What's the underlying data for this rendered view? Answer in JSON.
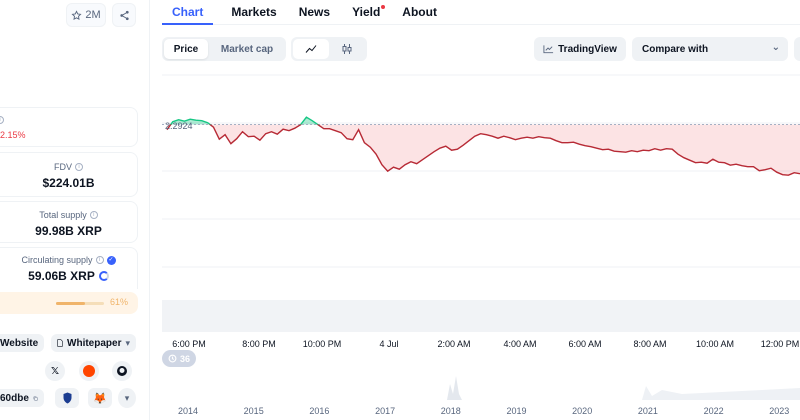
{
  "sidebar": {
    "watchlist_count": "2M",
    "price_change_pct": "2.15%",
    "fdv": {
      "label": "FDV",
      "value": "$224.01B"
    },
    "total_supply": {
      "label": "Total supply",
      "value": "99.98B XRP"
    },
    "circulating_supply": {
      "label": "Circulating supply",
      "value": "59.06B XRP"
    },
    "supply_pct": "61%",
    "supply_fraction": 0.61,
    "links": {
      "website": "Website",
      "whitepaper": "Whitepaper"
    },
    "contract_short": "60dbe"
  },
  "tabs": [
    {
      "label": "Chart"
    },
    {
      "label": "Markets"
    },
    {
      "label": "News"
    },
    {
      "label": "Yield"
    },
    {
      "label": "About"
    }
  ],
  "toolbar": {
    "price_label": "Price",
    "market_cap_label": "Market cap",
    "tradingview_label": "TradingView",
    "compare_label": "Compare with"
  },
  "chart_data": {
    "type": "line",
    "reference_price_label": "2.2924",
    "reference_price": 2.2924,
    "x_ticks": [
      "6:00 PM",
      "8:00 PM",
      "10:00 PM",
      "4 Jul",
      "2:00 AM",
      "4:00 AM",
      "6:00 AM",
      "8:00 AM",
      "10:00 AM",
      "12:00 PM"
    ],
    "year_ticks": [
      "2014",
      "2015",
      "2016",
      "2017",
      "2018",
      "2019",
      "2020",
      "2021",
      "2022",
      "2023"
    ],
    "events_count": "36",
    "colors": {
      "up": "#16c784",
      "down": "#ea3943"
    },
    "series": [
      {
        "values": [
          2.282,
          2.298,
          2.302,
          2.299,
          2.303,
          2.301,
          2.3,
          2.296,
          2.287,
          2.263,
          2.272,
          2.254,
          2.264,
          2.278,
          2.268,
          2.269,
          2.261,
          2.274,
          2.278,
          2.273,
          2.283,
          2.28,
          2.285,
          2.292,
          2.307,
          2.3,
          2.292,
          2.284,
          2.284,
          2.28,
          2.276,
          2.264,
          2.262,
          2.282,
          2.256,
          2.247,
          2.233,
          2.212,
          2.199,
          2.207,
          2.203,
          2.212,
          2.218,
          2.214,
          2.222,
          2.23,
          2.238,
          2.245,
          2.249,
          2.241,
          2.243,
          2.251,
          2.26,
          2.269,
          2.274,
          2.272,
          2.269,
          2.265,
          2.269,
          2.266,
          2.262,
          2.265,
          2.267,
          2.265,
          2.268,
          2.266,
          2.265,
          2.26,
          2.256,
          2.256,
          2.257,
          2.253,
          2.25,
          2.248,
          2.245,
          2.242,
          2.243,
          2.239,
          2.238,
          2.237,
          2.24,
          2.238,
          2.241,
          2.24,
          2.244,
          2.241,
          2.244,
          2.243,
          2.233,
          2.226,
          2.221,
          2.216,
          2.217,
          2.215,
          2.223,
          2.217,
          2.216,
          2.211,
          2.213,
          2.21,
          2.208,
          2.208,
          2.2,
          2.202,
          2.205,
          2.197,
          2.192,
          2.191,
          2.196,
          2.194
        ]
      }
    ]
  }
}
